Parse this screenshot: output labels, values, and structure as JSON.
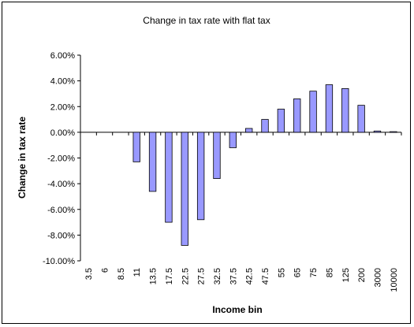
{
  "chart_data": {
    "type": "bar",
    "title": "Change in tax rate with flat tax",
    "xlabel": "Income bin",
    "ylabel": "Change in tax rate",
    "ylim": [
      -0.1,
      0.06
    ],
    "yticks": [
      0.06,
      0.04,
      0.02,
      0.0,
      -0.02,
      -0.04,
      -0.06,
      -0.08,
      -0.1
    ],
    "ytick_labels": [
      "6.00%",
      "4.00%",
      "2.00%",
      "0.00%",
      "-2.00%",
      "-4.00%",
      "-6.00%",
      "-8.00%",
      "-10.00%"
    ],
    "grid": false,
    "legend": "none",
    "bar_color": "#9999ff",
    "categories": [
      "3.5",
      "6",
      "8.5",
      "11",
      "13.5",
      "17.5",
      "22.5",
      "27.5",
      "32.5",
      "37.5",
      "42.5",
      "47.5",
      "55",
      "65",
      "75",
      "85",
      "125",
      "200",
      "3000",
      "10000"
    ],
    "values": [
      0.0,
      0.0,
      0.0,
      -0.023,
      -0.046,
      -0.07,
      -0.088,
      -0.068,
      -0.036,
      -0.012,
      0.003,
      0.01,
      0.018,
      0.026,
      0.032,
      0.037,
      0.034,
      0.021,
      0.001,
      0.0005
    ]
  }
}
